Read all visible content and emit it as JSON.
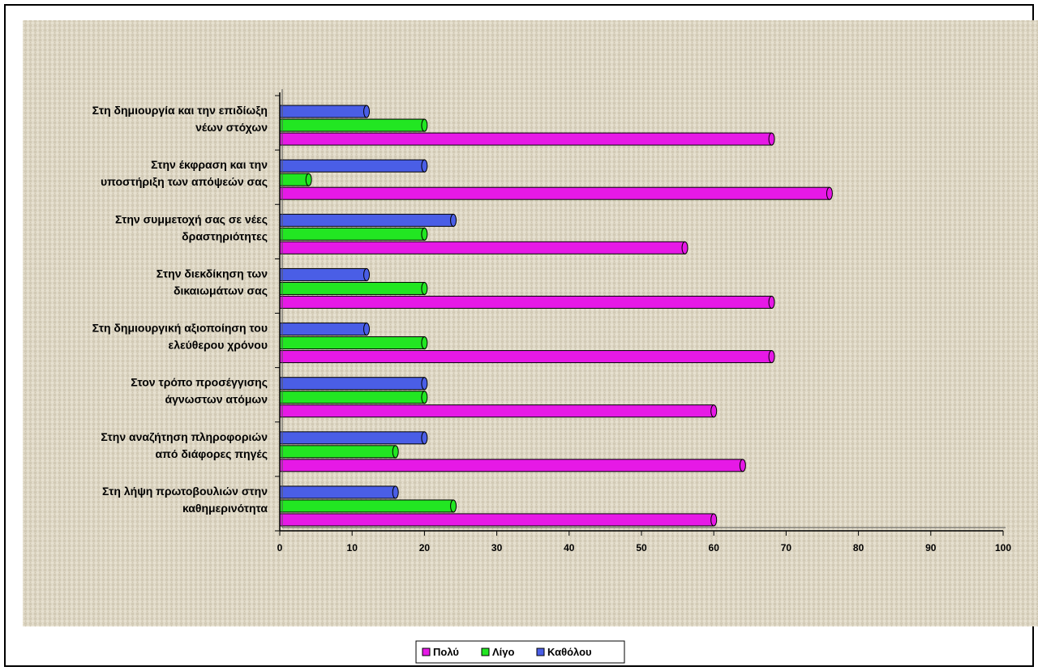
{
  "chart_data": {
    "type": "bar",
    "orientation": "horizontal",
    "categories": [
      [
        "Στη δημιουργία και την επιδίωξη",
        "νέων στόχων"
      ],
      [
        "Στην έκφραση και την",
        "υποστήριξη των απόψεών σας"
      ],
      [
        "Στην συμμετοχή σας σε νέες",
        "δραστηριότητες"
      ],
      [
        "Στην διεκδίκηση των",
        "δικαιωμάτων σας"
      ],
      [
        "Στη δημιουργική αξιοποίηση του",
        "ελεύθερου χρόνου"
      ],
      [
        "Στον τρόπο προσέγγισης",
        "άγνωστων ατόμων"
      ],
      [
        "Στην αναζήτηση πληροφοριών",
        "από διάφορες πηγές"
      ],
      [
        "Στη λήψη πρωτοβουλιών στην",
        "καθημερινότητα"
      ]
    ],
    "series": [
      {
        "name": "Καθόλου",
        "color": "#4a5ee6",
        "values": [
          12,
          20,
          24,
          12,
          12,
          20,
          20,
          16
        ]
      },
      {
        "name": "Λίγο",
        "color": "#22e622",
        "values": [
          20,
          4,
          20,
          20,
          20,
          20,
          16,
          24
        ]
      },
      {
        "name": "Πολύ",
        "color": "#e619e6",
        "values": [
          68,
          76,
          56,
          68,
          68,
          60,
          64,
          60
        ]
      }
    ],
    "legend_order": [
      "Πολύ",
      "Λίγο",
      "Καθόλου"
    ],
    "xlim": [
      0,
      100
    ],
    "xticks": [
      0,
      10,
      20,
      30,
      40,
      50,
      60,
      70,
      80,
      90,
      100
    ],
    "legend_position": "bottom",
    "grid": false
  }
}
